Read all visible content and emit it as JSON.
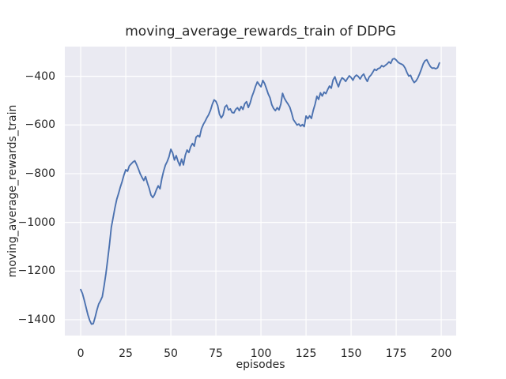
{
  "figure": {
    "title": "moving_average_rewards_train of DDPG",
    "xlabel": "episodes",
    "ylabel": "moving_average_rewards_train"
  },
  "chart_data": {
    "type": "line",
    "title": "moving_average_rewards_train of DDPG",
    "xlabel": "episodes",
    "ylabel": "moving_average_rewards_train",
    "grid": true,
    "legend": false,
    "style": "seaborn-darkgrid",
    "axes_background": "#eaeaf2",
    "grid_color": "#ffffff",
    "text_color": "#262626",
    "line_color": "#4c72b0",
    "xlim": [
      -8.8,
      208.3
    ],
    "ylim": [
      -1465,
      -278
    ],
    "x_ticks": [
      0,
      25,
      50,
      75,
      100,
      125,
      150,
      175,
      200
    ],
    "y_ticks": [
      -400,
      -600,
      -800,
      -1000,
      -1200,
      -1400
    ],
    "series": [
      {
        "name": "moving_average_rewards_train",
        "x_start": 0,
        "x_step": 1,
        "values": [
          -1276,
          -1292,
          -1320,
          -1350,
          -1380,
          -1403,
          -1418,
          -1416,
          -1390,
          -1360,
          -1335,
          -1322,
          -1305,
          -1260,
          -1210,
          -1150,
          -1090,
          -1020,
          -980,
          -940,
          -905,
          -882,
          -855,
          -832,
          -805,
          -784,
          -790,
          -768,
          -760,
          -752,
          -747,
          -762,
          -780,
          -800,
          -815,
          -828,
          -812,
          -838,
          -860,
          -888,
          -898,
          -886,
          -866,
          -850,
          -862,
          -820,
          -790,
          -765,
          -750,
          -730,
          -700,
          -714,
          -744,
          -726,
          -750,
          -767,
          -740,
          -764,
          -725,
          -703,
          -713,
          -690,
          -676,
          -687,
          -650,
          -643,
          -649,
          -616,
          -598,
          -585,
          -570,
          -558,
          -540,
          -515,
          -497,
          -503,
          -520,
          -556,
          -571,
          -559,
          -526,
          -519,
          -538,
          -534,
          -549,
          -550,
          -536,
          -529,
          -541,
          -524,
          -536,
          -513,
          -504,
          -528,
          -510,
          -483,
          -464,
          -441,
          -423,
          -434,
          -443,
          -417,
          -429,
          -450,
          -472,
          -488,
          -517,
          -532,
          -541,
          -529,
          -538,
          -514,
          -470,
          -490,
          -503,
          -514,
          -527,
          -550,
          -578,
          -589,
          -600,
          -596,
          -605,
          -598,
          -607,
          -563,
          -574,
          -562,
          -573,
          -540,
          -515,
          -482,
          -495,
          -468,
          -481,
          -465,
          -471,
          -455,
          -440,
          -449,
          -415,
          -402,
          -425,
          -443,
          -420,
          -406,
          -412,
          -421,
          -409,
          -398,
          -405,
          -416,
          -402,
          -395,
          -401,
          -411,
          -398,
          -391,
          -408,
          -421,
          -403,
          -395,
          -384,
          -371,
          -376,
          -368,
          -366,
          -356,
          -361,
          -355,
          -349,
          -341,
          -347,
          -330,
          -327,
          -333,
          -342,
          -347,
          -350,
          -355,
          -367,
          -385,
          -399,
          -396,
          -414,
          -426,
          -419,
          -407,
          -390,
          -370,
          -349,
          -336,
          -332,
          -347,
          -360,
          -367,
          -366,
          -369,
          -365,
          -345
        ]
      }
    ]
  }
}
